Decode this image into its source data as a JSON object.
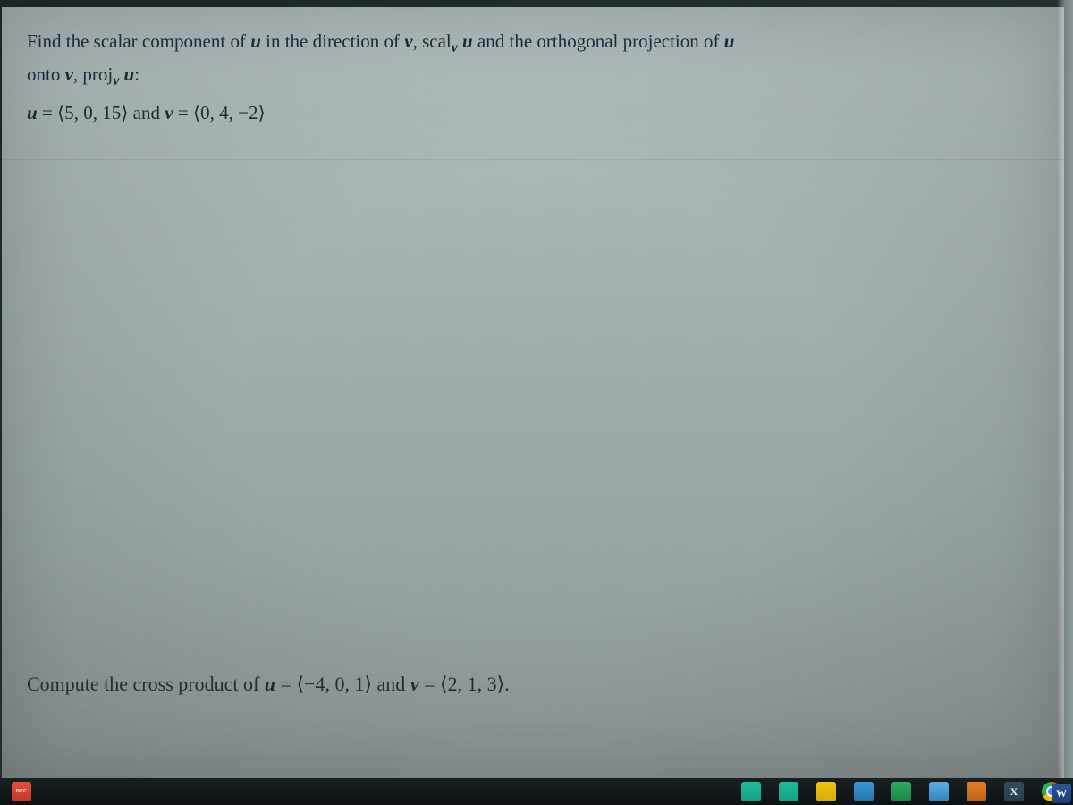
{
  "problem1": {
    "instruction_part1": "Find the scalar component of ",
    "var_u1": "u",
    "instruction_part2": " in the direction of ",
    "var_v1": "v",
    "instruction_part3": ", scal",
    "sub_v": "v",
    "space1": " ",
    "var_u2": "u",
    "instruction_part4": " and the orthogonal projection of ",
    "var_u3": "u",
    "line2_part1": "onto ",
    "var_v2": "v",
    "line2_part2": ", proj",
    "sub_v2": "v",
    "space2": " ",
    "var_u4": "u",
    "colon": ":",
    "vec_u_label": "u",
    "equals1": " = ",
    "vec_u_val": "⟨5, 0, 15⟩",
    "and_text": " and ",
    "vec_v_label": "v",
    "equals2": " = ",
    "vec_v_val": "⟨0, 4, −2⟩"
  },
  "problem2": {
    "text_part1": "Compute the cross product of ",
    "var_u": "u",
    "equals1": " = ",
    "vec_u_val": "⟨−4, 0, 1⟩",
    "and_text": " and ",
    "var_v": "v",
    "equals2": " = ",
    "vec_v_val": "⟨2, 1, 3⟩.",
    "period": ""
  },
  "taskbar": {
    "calendar_month": "DEC",
    "calendar_day": "",
    "word_letter": "W",
    "x_letter": "X"
  },
  "style": {
    "background_top": "#b8c4c4",
    "background_bottom": "#909a9a",
    "text_color_top": "#1a2a3a",
    "text_color_bottom": "#2a2a2a",
    "fontsize_body": 21,
    "fontsize_bottom": 22,
    "font_family": "Times New Roman",
    "frame_color": "#1a2628"
  }
}
